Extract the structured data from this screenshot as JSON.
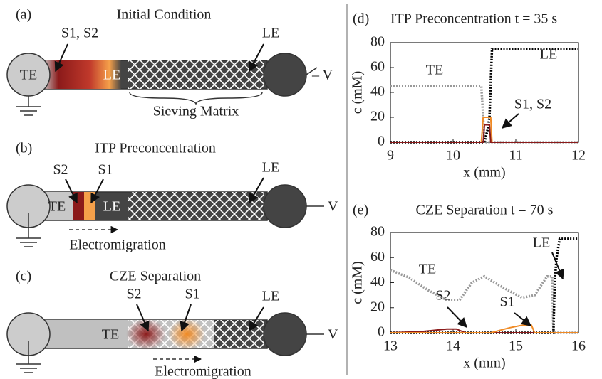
{
  "diagram": {
    "a": {
      "label": "(a)",
      "title": "Initial Condition",
      "sample": "S1, S2",
      "le_arrow": "LE",
      "te": "TE",
      "le": "LE",
      "matrix": "Sieving Matrix",
      "voltage": "– V"
    },
    "b": {
      "label": "(b)",
      "title": "ITP Preconcentration",
      "s2": "S2",
      "s1": "S1",
      "le_arrow": "LE",
      "te": "TE",
      "le": "LE",
      "voltage": "V",
      "migration": "Electromigration"
    },
    "c": {
      "label": "(c)",
      "title": "CZE Separation",
      "s2": "S2",
      "s1": "S1",
      "le_arrow": "LE",
      "te": "TE",
      "voltage": "V",
      "migration": "Electromigration"
    }
  },
  "chart_data": [
    {
      "type": "line",
      "label": "(d)",
      "title": "ITP Preconcentration t = 35 s",
      "x_label": "x (mm)",
      "y_label": "c (mM)",
      "xlim": [
        9,
        12
      ],
      "xticks": [
        9,
        10,
        11,
        12
      ],
      "ylim": [
        0,
        80
      ],
      "yticks": [
        0,
        20,
        40,
        60,
        80
      ],
      "annotations": [
        "TE",
        "LE",
        "S1, S2"
      ],
      "series": [
        {
          "color": "#999999",
          "style": "dotted",
          "x": [
            9,
            10.45,
            10.48,
            10.5,
            12
          ],
          "values": [
            45,
            45,
            20,
            0,
            0
          ]
        },
        {
          "color": "#000000",
          "style": "dotted",
          "x": [
            9,
            10.5,
            10.55,
            10.58,
            10.62,
            12
          ],
          "values": [
            0,
            0,
            10,
            20,
            75,
            75
          ]
        },
        {
          "color": "#f08a24",
          "style": "solid",
          "x": [
            9,
            10.45,
            10.48,
            10.6,
            10.62,
            12
          ],
          "values": [
            0,
            0,
            20,
            20,
            0,
            0
          ]
        },
        {
          "color": "#8b1a1a",
          "style": "solid",
          "x": [
            9,
            10.48,
            10.5,
            10.58,
            10.6,
            12
          ],
          "values": [
            0,
            0,
            14,
            14,
            0,
            0
          ]
        }
      ]
    },
    {
      "type": "line",
      "label": "(e)",
      "title": "CZE Separation t = 70 s",
      "x_label": "x (mm)",
      "y_label": "c (mM)",
      "xlim": [
        13,
        16
      ],
      "xticks": [
        13,
        14,
        15,
        16
      ],
      "ylim": [
        0,
        80
      ],
      "yticks": [
        0,
        20,
        40,
        60,
        80
      ],
      "annotations": [
        "TE",
        "LE",
        "S2",
        "S1"
      ],
      "series": [
        {
          "color": "#999999",
          "style": "dotted",
          "x": [
            13,
            13.3,
            13.6,
            13.9,
            14.1,
            14.3,
            14.5,
            14.8,
            15.1,
            15.3,
            15.5,
            15.58,
            15.6,
            16
          ],
          "values": [
            50,
            44,
            34,
            26,
            26,
            40,
            45,
            36,
            28,
            30,
            45,
            45,
            0,
            0
          ]
        },
        {
          "color": "#000000",
          "style": "dotted",
          "x": [
            13,
            15.6,
            15.62,
            15.65,
            15.7,
            16
          ],
          "values": [
            0,
            0,
            40,
            60,
            75,
            75
          ]
        },
        {
          "color": "#8b1a1a",
          "style": "solid",
          "x": [
            13,
            13.5,
            13.9,
            14.05,
            14.2,
            16
          ],
          "values": [
            0,
            1,
            3,
            3,
            0,
            0
          ]
        },
        {
          "color": "#f08a24",
          "style": "solid",
          "x": [
            13,
            14.6,
            14.9,
            15.1,
            15.25,
            15.3,
            16
          ],
          "values": [
            0,
            0,
            4,
            6,
            6,
            0,
            0
          ]
        }
      ]
    }
  ]
}
